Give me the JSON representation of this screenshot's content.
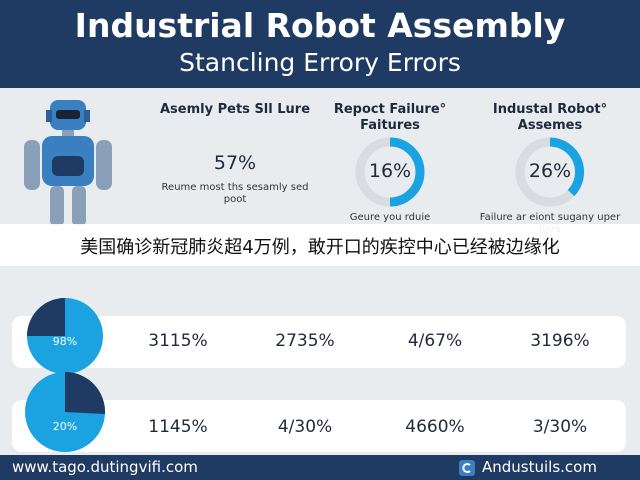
{
  "header": {
    "title": "Industrial Robot Assembly",
    "subtitle": "Stancling Errory Errors"
  },
  "cards": [
    {
      "title": "Asemly Pets Sll Lure",
      "value": "57%",
      "description": "Reume most ths sesamly sed poot"
    },
    {
      "title": "Repoct Failure° Faitures",
      "value": "16%",
      "description": "Geure you rduie"
    },
    {
      "title": "Industal Robot° Assemes",
      "value": "26%",
      "description": "Failure ar eiont sugany uper finrs"
    }
  ],
  "banner": "美国确诊新冠肺炎超4万例，敢开口的疾控中心已经被边缘化",
  "rows": [
    {
      "pie": "98%",
      "cells": [
        "3115%",
        "2735%",
        "4/67%",
        "3196%"
      ]
    },
    {
      "pie": "20%",
      "cells": [
        "1145%",
        "4/30%",
        "4660%",
        "3/30%"
      ]
    }
  ],
  "footer": {
    "left": "www.tago.dutingvifi.com",
    "right": "Andustuils.com"
  }
}
